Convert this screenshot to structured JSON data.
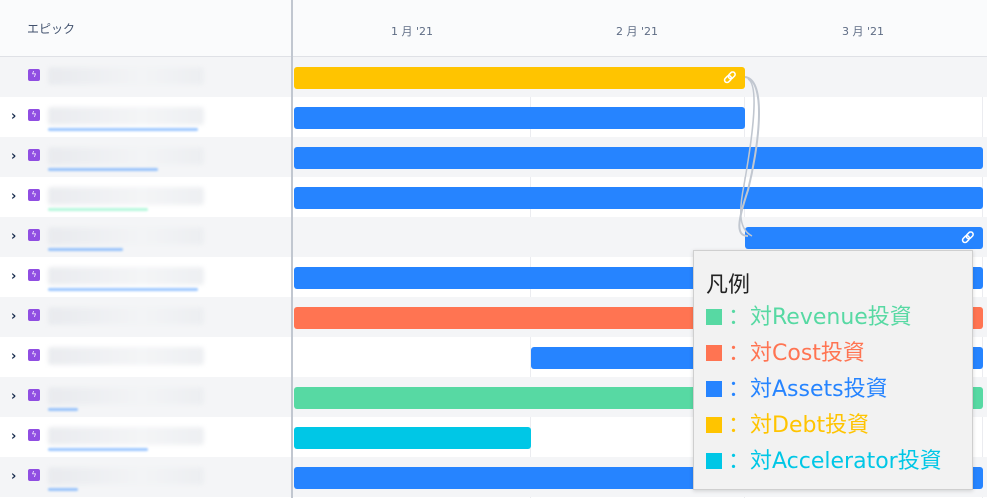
{
  "left_header": {
    "label": "エピック"
  },
  "months": [
    "1 月 '21",
    "2 月 '21",
    "3 月 '21"
  ],
  "colors": {
    "revenue": "#57d9a3",
    "cost": "#ff7452",
    "assets": "#2684ff",
    "debt": "#ffc400",
    "accelerator": "#00c7e6",
    "epic_icon": "#904ee2"
  },
  "legend": {
    "title": "凡例",
    "items": [
      {
        "label": "：対Revenue投資",
        "color": "#57d9a3"
      },
      {
        "label": "：対Cost投資",
        "color": "#ff7452"
      },
      {
        "label": "：対Assets投資",
        "color": "#2684ff"
      },
      {
        "label": "：対Debt投資",
        "color": "#ffc400"
      },
      {
        "label": "：対Accelerator投資",
        "color": "#00c7e6"
      }
    ]
  },
  "rows": [
    {
      "expandable": false,
      "category": "debt",
      "linked": true
    },
    {
      "expandable": true,
      "category": "assets",
      "linked": false
    },
    {
      "expandable": true,
      "category": "assets",
      "linked": false
    },
    {
      "expandable": true,
      "category": "assets",
      "linked": false
    },
    {
      "expandable": true,
      "category": "assets",
      "linked": true
    },
    {
      "expandable": true,
      "category": "assets",
      "linked": false
    },
    {
      "expandable": true,
      "category": "cost",
      "linked": false
    },
    {
      "expandable": true,
      "category": "assets",
      "linked": false
    },
    {
      "expandable": true,
      "category": "revenue",
      "linked": false
    },
    {
      "expandable": true,
      "category": "accelerator",
      "linked": false
    },
    {
      "expandable": true,
      "category": "assets",
      "linked": false
    }
  ],
  "icons": {
    "chevron": "chevron-right-icon",
    "epic": "lightning-icon",
    "link": "link-icon"
  }
}
